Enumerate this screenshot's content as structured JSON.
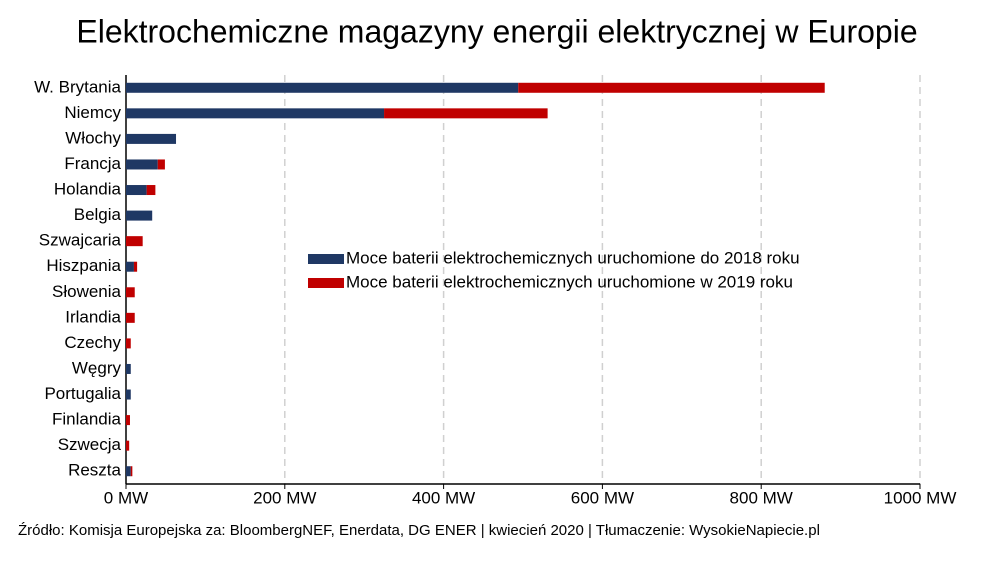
{
  "chart_data": {
    "type": "bar",
    "orientation": "horizontal",
    "stacked": true,
    "title": "Elektrochemiczne magazyny energii elektrycznej w Europie",
    "source": "Źródło: Komisja Europejska za: BloombergNEF, Enerdata, DG ENER  |  kwiecień 2020  |  Tłumaczenie: WysokieNapiecie.pl",
    "categories": [
      "W. Brytania",
      "Niemcy",
      "Włochy",
      "Francja",
      "Holandia",
      "Belgia",
      "Szwajcaria",
      "Hiszpania",
      "Słowenia",
      "Irlandia",
      "Czechy",
      "Węgry",
      "Portugalia",
      "Finlandia",
      "Szwecja",
      "Reszta"
    ],
    "series": [
      {
        "name": "Moce baterii elektrochemicznych uruchomione do 2018 roku",
        "color": "#1f3864",
        "values": [
          494,
          325,
          63,
          40,
          26,
          33,
          0,
          10,
          0,
          0,
          0,
          6,
          6,
          0,
          0,
          6
        ]
      },
      {
        "name": "Moce baterii elektrochemicznych uruchomione w 2019 roku",
        "color": "#c00000",
        "values": [
          386,
          206,
          0,
          9,
          11,
          0,
          21,
          4,
          11,
          11,
          6,
          0,
          0,
          5,
          4,
          2
        ]
      }
    ],
    "xlim": [
      0,
      1000
    ],
    "xticks": [
      {
        "value": 0,
        "label": "0 MW"
      },
      {
        "value": 200,
        "label": "200 MW"
      },
      {
        "value": 400,
        "label": "400 MW"
      },
      {
        "value": 600,
        "label": "600 MW"
      },
      {
        "value": 800,
        "label": "800 MW"
      },
      {
        "value": 1000,
        "label": "1000 MW"
      }
    ],
    "grid": true
  }
}
